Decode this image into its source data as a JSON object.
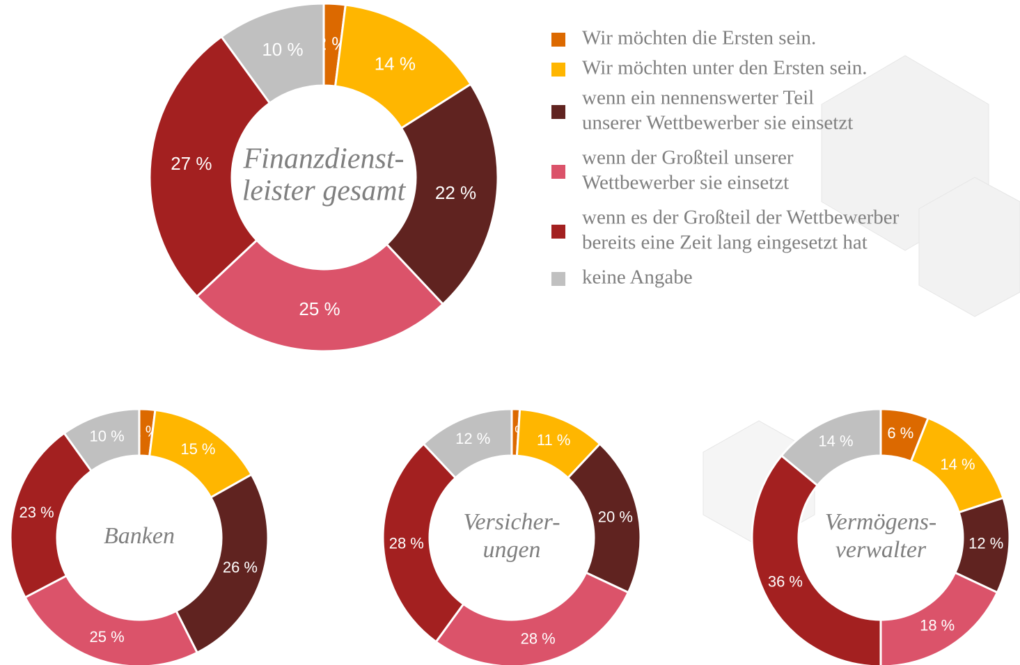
{
  "legend": {
    "labels": [
      [
        "Wir möchten die Ersten sein."
      ],
      [
        "Wir möchten unter den Ersten sein."
      ],
      [
        "wenn ein nennenswerter Teil",
        "unserer Wettbewerber sie einsetzt"
      ],
      [
        "wenn der Großteil unserer",
        "Wettbewerber sie einsetzt"
      ],
      [
        "wenn es der Großteil der Wettbewerber",
        "bereits eine Zeit lang eingesetzt hat"
      ],
      [
        "keine Angabe"
      ]
    ],
    "colors": [
      "#dc6900",
      "#ffb600",
      "#602320",
      "#db536a",
      "#a32020",
      "#c0c0c0"
    ]
  },
  "chart_data": [
    {
      "type": "donut",
      "title": [
        "Finanzdienst-",
        "leister gesamt"
      ],
      "values": [
        2,
        14,
        22,
        25,
        27,
        10
      ],
      "value_labels": [
        "2 %",
        "14 %",
        "22 %",
        "25 %",
        "27 %",
        "10 %"
      ]
    },
    {
      "type": "donut",
      "title": [
        "Banken"
      ],
      "values": [
        2,
        15,
        26,
        25,
        23,
        10
      ],
      "value_labels": [
        "2 %",
        "15 %",
        "26 %",
        "25 %",
        "23 %",
        "10 %"
      ]
    },
    {
      "type": "donut",
      "title": [
        "Versicher-",
        "ungen"
      ],
      "values": [
        1,
        11,
        20,
        28,
        28,
        12
      ],
      "value_labels": [
        "1 %",
        "11 %",
        "20 %",
        "28 %",
        "28 %",
        "12 %"
      ]
    },
    {
      "type": "donut",
      "title": [
        "Vermögens-",
        "verwalter"
      ],
      "values": [
        6,
        14,
        12,
        18,
        36,
        14
      ],
      "value_labels": [
        "6 %",
        "14 %",
        "12 %",
        "18 %",
        "36 %",
        "14 %"
      ]
    }
  ]
}
